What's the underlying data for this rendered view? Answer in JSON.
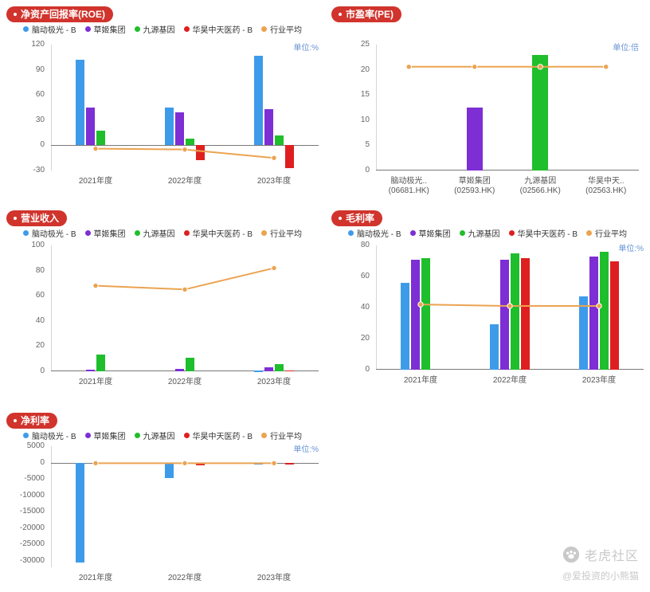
{
  "palette": {
    "blue": "#3E9BEA",
    "purple": "#7D2ED4",
    "green": "#1FBE2C",
    "red": "#DF1F1F",
    "orange": "#EBA351",
    "badge_bg": "#D0342C",
    "unit_text": "#6693D5"
  },
  "legend_items": [
    {
      "label": "脑动极光 - B",
      "color": "blue"
    },
    {
      "label": "草姬集团",
      "color": "purple"
    },
    {
      "label": "九源基因",
      "color": "green"
    },
    {
      "label": "华昊中天医药 - B",
      "color": "red"
    },
    {
      "label": "行业平均",
      "color": "orange"
    }
  ],
  "watermark": {
    "brand": "老虎社区",
    "handle": "@爱投资的小熊猫"
  },
  "chart_data": [
    {
      "id": "roe",
      "type": "bar",
      "title": "净资产回报率(ROE)",
      "unit": "单位:%",
      "show_legend": true,
      "legend_position": "top-center",
      "grid": false,
      "categories": [
        "2021年度",
        "2022年度",
        "2023年度"
      ],
      "ylim": [
        -30,
        120
      ],
      "yticks": [
        120,
        90,
        60,
        30,
        0,
        -30
      ],
      "series": [
        {
          "name": "脑动极光 - B",
          "kind": "bar",
          "color": "blue",
          "values": [
            102,
            45,
            107
          ]
        },
        {
          "name": "草姬集团",
          "kind": "bar",
          "color": "purple",
          "values": [
            45,
            39,
            43
          ]
        },
        {
          "name": "九源基因",
          "kind": "bar",
          "color": "green",
          "values": [
            17,
            8,
            12
          ]
        },
        {
          "name": "华昊中天医药 - B",
          "kind": "bar",
          "color": "red",
          "values": [
            null,
            -18,
            -27
          ]
        },
        {
          "name": "行业平均",
          "kind": "line",
          "color": "orange",
          "values": [
            -4,
            -5,
            -15
          ]
        }
      ]
    },
    {
      "id": "pe",
      "type": "bar",
      "title": "市盈率(PE)",
      "unit": "单位:倍",
      "show_legend": false,
      "grid": false,
      "categories": [
        "脑动极光..\n(06681.HK)",
        "草姬集团\n(02593.HK)",
        "九源基因\n(02566.HK)",
        "华昊中天..\n(02563.HK)"
      ],
      "ylim": [
        0,
        25
      ],
      "yticks": [
        25,
        20,
        15,
        10,
        5,
        0
      ],
      "series": [
        {
          "name": "市盈率",
          "kind": "bar",
          "color": "purple",
          "colors": [
            null,
            "purple",
            "green",
            null
          ],
          "values": [
            null,
            12.5,
            23,
            null
          ]
        },
        {
          "name": "行业平均",
          "kind": "line",
          "color": "orange",
          "values": [
            20.6,
            20.6,
            20.6,
            20.6
          ]
        }
      ]
    },
    {
      "id": "revenue",
      "type": "bar",
      "title": "营业收入",
      "unit": "",
      "show_legend": true,
      "grid": false,
      "categories": [
        "2021年度",
        "2022年度",
        "2023年度"
      ],
      "ylim": [
        0,
        100
      ],
      "yticks": [
        100,
        80,
        60,
        40,
        20,
        0
      ],
      "series": [
        {
          "name": "脑动极光 - B",
          "kind": "bar",
          "color": "blue",
          "values": [
            null,
            null,
            0.6
          ]
        },
        {
          "name": "草姬集团",
          "kind": "bar",
          "color": "purple",
          "values": [
            1.5,
            2,
            3
          ]
        },
        {
          "name": "九源基因",
          "kind": "bar",
          "color": "green",
          "values": [
            13,
            11,
            6
          ]
        },
        {
          "name": "华昊中天医药 - B",
          "kind": "bar",
          "color": "red",
          "values": [
            null,
            null,
            0.8
          ]
        },
        {
          "name": "行业平均",
          "kind": "line",
          "color": "orange",
          "values": [
            68,
            65,
            82
          ]
        }
      ]
    },
    {
      "id": "gross-margin",
      "type": "bar",
      "title": "毛利率",
      "unit": "单位:%",
      "show_legend": true,
      "grid": false,
      "categories": [
        "2021年度",
        "2022年度",
        "2023年度"
      ],
      "ylim": [
        0,
        80
      ],
      "yticks": [
        80,
        60,
        40,
        20,
        0
      ],
      "series": [
        {
          "name": "脑动极光 - B",
          "kind": "bar",
          "color": "blue",
          "values": [
            56,
            29,
            47
          ]
        },
        {
          "name": "草姬集团",
          "kind": "bar",
          "color": "purple",
          "values": [
            71,
            71,
            73
          ]
        },
        {
          "name": "九源基因",
          "kind": "bar",
          "color": "green",
          "values": [
            72,
            75,
            76
          ]
        },
        {
          "name": "华昊中天医药 - B",
          "kind": "bar",
          "color": "red",
          "values": [
            null,
            72,
            70
          ]
        },
        {
          "name": "行业平均",
          "kind": "line",
          "color": "orange",
          "values": [
            42,
            41,
            41
          ]
        }
      ]
    },
    {
      "id": "net-margin",
      "type": "bar",
      "title": "净利率",
      "unit": "单位:%",
      "show_legend": true,
      "grid": false,
      "categories": [
        "2021年度",
        "2022年度",
        "2023年度"
      ],
      "ylim": [
        -32000,
        5000
      ],
      "yticks": [
        5000,
        0,
        -5000,
        -10000,
        -15000,
        -20000,
        -25000,
        -30000
      ],
      "series": [
        {
          "name": "脑动极光 - B",
          "kind": "bar",
          "color": "blue",
          "values": [
            -30500,
            -4800,
            -700
          ]
        },
        {
          "name": "草姬集团",
          "kind": "bar",
          "color": "purple",
          "values": [
            null,
            null,
            null
          ]
        },
        {
          "name": "九源基因",
          "kind": "bar",
          "color": "green",
          "values": [
            null,
            null,
            null
          ]
        },
        {
          "name": "华昊中天医药 - B",
          "kind": "bar",
          "color": "red",
          "values": [
            null,
            -900,
            -600
          ]
        },
        {
          "name": "行业平均",
          "kind": "line",
          "color": "orange",
          "values": [
            -200,
            -200,
            -200
          ]
        }
      ]
    }
  ]
}
